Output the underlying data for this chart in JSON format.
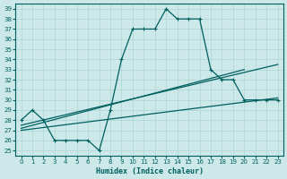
{
  "xlabel": "Humidex (Indice chaleur)",
  "bg_color": "#cce8e8",
  "grid_color": "#aad4d4",
  "line_color": "#005f5f",
  "xlim": [
    -0.5,
    23.5
  ],
  "ylim": [
    24.5,
    39.5
  ],
  "xticks": [
    0,
    1,
    2,
    3,
    4,
    5,
    6,
    7,
    8,
    9,
    10,
    11,
    12,
    13,
    14,
    15,
    16,
    17,
    18,
    19,
    20,
    21,
    22,
    23
  ],
  "yticks": [
    25,
    26,
    27,
    28,
    29,
    30,
    31,
    32,
    33,
    34,
    35,
    36,
    37,
    38,
    39
  ],
  "main_line": {
    "x": [
      0,
      1,
      2,
      3,
      4,
      5,
      6,
      7,
      8,
      9,
      10,
      11,
      12,
      13,
      14,
      15,
      16,
      17,
      18,
      19,
      20,
      21,
      22,
      23
    ],
    "y": [
      28,
      29,
      28,
      26,
      26,
      26,
      26,
      25,
      29,
      34,
      37,
      37,
      37,
      39,
      38,
      38,
      38,
      33,
      32,
      32,
      30,
      30,
      30,
      30
    ]
  },
  "upper_line": {
    "x": [
      0,
      23
    ],
    "y": [
      27.5,
      33.5
    ]
  },
  "upper_line2": {
    "x": [
      0,
      20
    ],
    "y": [
      27.2,
      33.0
    ]
  },
  "lower_line": {
    "x": [
      0,
      23
    ],
    "y": [
      27.0,
      30.2
    ]
  }
}
